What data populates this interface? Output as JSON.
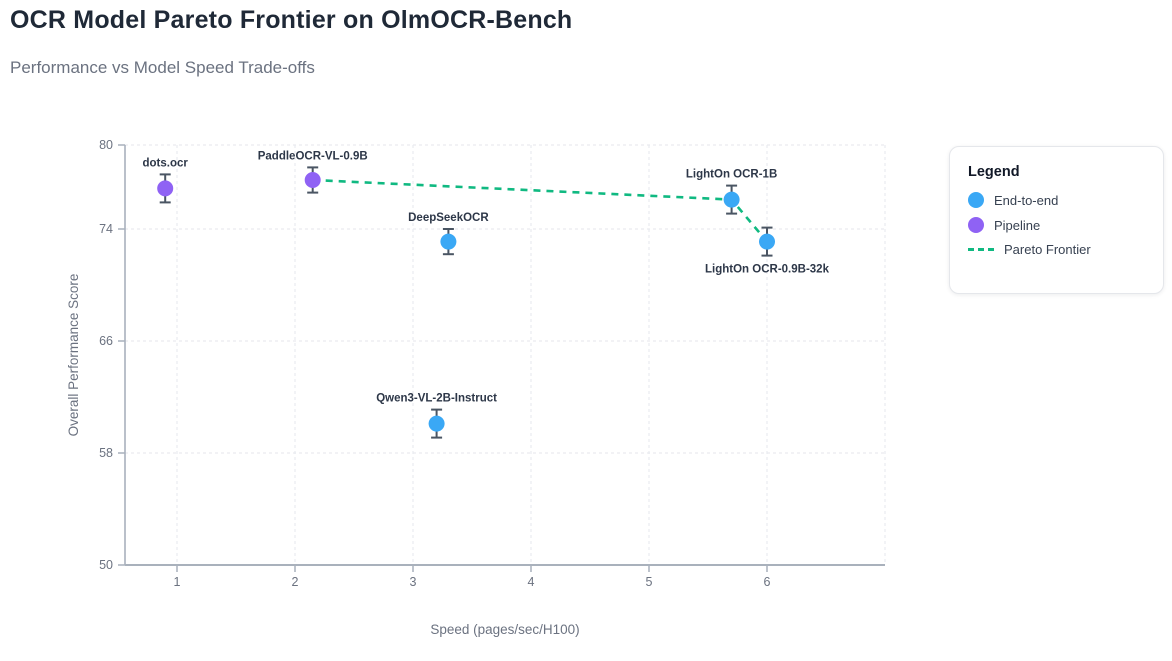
{
  "header": {
    "title": "OCR Model Pareto Frontier on OlmOCR-Bench",
    "subtitle": "Performance vs Model Speed Trade-offs"
  },
  "legend": {
    "title": "Legend",
    "items": [
      {
        "label": "End-to-end",
        "swatch": "circle",
        "color": "#3aa8f5"
      },
      {
        "label": "Pipeline",
        "swatch": "circle",
        "color": "#8f62f4"
      },
      {
        "label": "Pareto Frontier",
        "swatch": "dashed-line",
        "color": "#10b981"
      }
    ]
  },
  "chart_data": {
    "type": "scatter",
    "title": "OCR Model Pareto Frontier on OlmOCR-Bench",
    "subtitle": "Performance vs Model Speed Trade-offs",
    "xlabel": "Speed (pages/sec/H100)",
    "ylabel": "Overall Performance Score",
    "xlim": [
      0.56,
      7.0
    ],
    "ylim": [
      50,
      80
    ],
    "x_ticks": [
      1,
      2,
      3,
      4,
      5,
      6
    ],
    "x_gridlines": [
      1,
      2,
      3,
      4,
      5,
      6,
      7
    ],
    "y_ticks": [
      80,
      74,
      66,
      58,
      50
    ],
    "grid": true,
    "legend_position": "right",
    "series": [
      {
        "name": "End-to-end",
        "color": "#3aa8f5",
        "points": [
          {
            "label": "DeepSeekOCR",
            "x": 3.3,
            "y": 73.1,
            "err": 0.9,
            "label_pos": "above"
          },
          {
            "label": "Qwen3-VL-2B-Instruct",
            "x": 3.2,
            "y": 60.1,
            "err": 1.0,
            "label_pos": "above"
          },
          {
            "label": "LightOn OCR-1B",
            "x": 5.7,
            "y": 76.1,
            "err": 1.0,
            "label_pos": "above"
          },
          {
            "label": "LightOn OCR-0.9B-32k",
            "x": 6.0,
            "y": 73.1,
            "err": 1.0,
            "label_pos": "below"
          }
        ]
      },
      {
        "name": "Pipeline",
        "color": "#8f62f4",
        "points": [
          {
            "label": "dots.ocr",
            "x": 0.9,
            "y": 76.9,
            "err": 1.0,
            "label_pos": "above"
          },
          {
            "label": "PaddleOCR-VL-0.9B",
            "x": 2.15,
            "y": 77.5,
            "err": 0.9,
            "label_pos": "above"
          }
        ]
      }
    ],
    "pareto_frontier": {
      "name": "Pareto Frontier",
      "color": "#10b981",
      "style": "dashed",
      "points": [
        {
          "x": 2.15,
          "y": 77.5
        },
        {
          "x": 5.7,
          "y": 76.1
        },
        {
          "x": 6.0,
          "y": 73.1
        }
      ]
    }
  },
  "colors": {
    "title": "#1f2937",
    "subtitle": "#6b7280",
    "axis_line": "#a9b1bc",
    "tick_text": "#6b7280",
    "grid_line": "#e9ebef",
    "point_label": "#2d3748",
    "error_bar": "#4a5563",
    "background": "#ffffff"
  }
}
